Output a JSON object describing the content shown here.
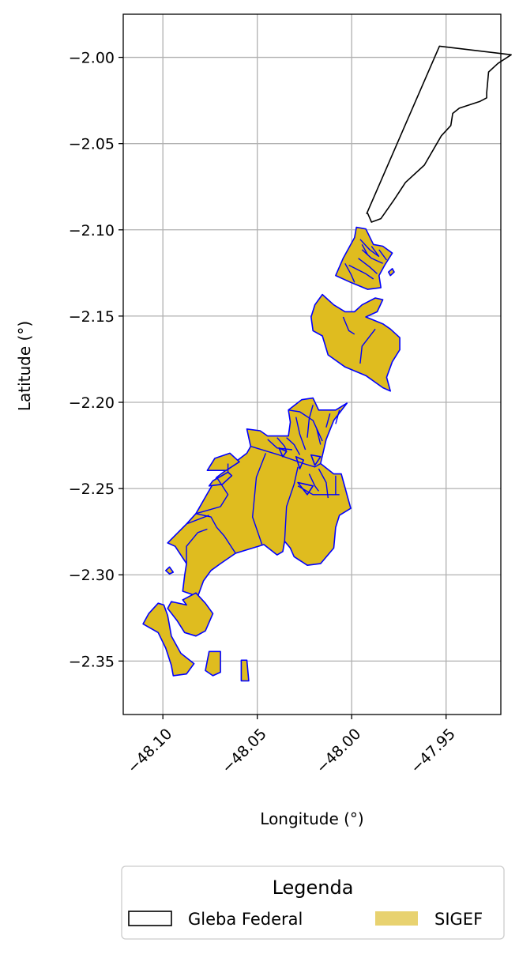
{
  "chart_data": {
    "type": "map",
    "xlabel": "Longitude (°)",
    "ylabel": "Latitude (°)",
    "xlim": [
      -48.121,
      -47.921
    ],
    "ylim": [
      -2.381,
      -1.975
    ],
    "x_ticks": [
      {
        "value": -48.1,
        "label": "−48.10"
      },
      {
        "value": -48.05,
        "label": "−48.05"
      },
      {
        "value": -48.0,
        "label": "−48.00"
      },
      {
        "value": -47.95,
        "label": "−47.95"
      }
    ],
    "y_ticks": [
      {
        "value": -2.0,
        "label": "−2.00"
      },
      {
        "value": -2.05,
        "label": "−2.05"
      },
      {
        "value": -2.1,
        "label": "−2.10"
      },
      {
        "value": -2.15,
        "label": "−2.15"
      },
      {
        "value": -2.2,
        "label": "−2.20"
      },
      {
        "value": -2.25,
        "label": "−2.25"
      },
      {
        "value": -2.3,
        "label": "−2.30"
      },
      {
        "value": -2.35,
        "label": "−2.35"
      }
    ],
    "grid": true,
    "legend": {
      "title": "Legenda",
      "placement": "bottom",
      "entries": [
        {
          "name": "Gleba Federal",
          "fill": "none",
          "edge": "#000000"
        },
        {
          "name": "SIGEF",
          "fill": "#e8d270",
          "edge": "none"
        }
      ]
    },
    "colors": {
      "sigef_fill": "#dfbc1f",
      "sigef_edge": "#0000ff",
      "gleba_edge": "#000000"
    },
    "gleba_federal": [
      [
        [
          -47.992,
          -2.0905
        ],
        [
          -47.9535,
          -1.9935
        ],
        [
          -47.9155,
          -1.9985
        ],
        [
          -47.9225,
          -2.0035
        ],
        [
          -47.9275,
          -2.0085
        ],
        [
          -47.9285,
          -2.0205
        ],
        [
          -47.9285,
          -2.0235
        ],
        [
          -47.932,
          -2.0255
        ],
        [
          -47.943,
          -2.0295
        ],
        [
          -47.9465,
          -2.0325
        ],
        [
          -47.9475,
          -2.0395
        ],
        [
          -47.9525,
          -2.0455
        ],
        [
          -47.9615,
          -2.0625
        ],
        [
          -47.9715,
          -2.0725
        ],
        [
          -47.9775,
          -2.0825
        ],
        [
          -47.9845,
          -2.0935
        ],
        [
          -47.9895,
          -2.0955
        ],
        [
          -47.9915,
          -2.0905
        ]
      ]
    ],
    "sigef": [
      [
        [
          -47.9975,
          -2.0985
        ],
        [
          -47.9925,
          -2.0995
        ],
        [
          -47.9885,
          -2.1085
        ],
        [
          -47.9835,
          -2.1095
        ],
        [
          -47.9785,
          -2.1135
        ],
        [
          -47.9825,
          -2.1205
        ],
        [
          -47.9855,
          -2.1265
        ],
        [
          -47.9845,
          -2.1335
        ],
        [
          -47.9915,
          -2.1345
        ],
        [
          -48.0005,
          -2.1305
        ],
        [
          -48.0085,
          -2.1265
        ],
        [
          -48.0045,
          -2.1165
        ],
        [
          -47.9985,
          -2.1045
        ]
      ],
      [
        [
          -47.9785,
          -2.1225
        ],
        [
          -47.9805,
          -2.1245
        ],
        [
          -47.9795,
          -2.1265
        ],
        [
          -47.9775,
          -2.1245
        ]
      ],
      [
        [
          -47.9925,
          -2.1505
        ],
        [
          -47.9865,
          -2.1475
        ],
        [
          -47.9835,
          -2.1405
        ],
        [
          -47.9875,
          -2.1395
        ],
        [
          -47.9945,
          -2.1435
        ],
        [
          -47.9985,
          -2.1475
        ],
        [
          -48.0035,
          -2.1475
        ],
        [
          -48.0095,
          -2.1435
        ],
        [
          -48.0135,
          -2.1395
        ],
        [
          -48.0155,
          -2.1375
        ],
        [
          -48.0195,
          -2.1435
        ],
        [
          -48.0215,
          -2.1505
        ],
        [
          -48.0205,
          -2.1585
        ],
        [
          -48.0155,
          -2.1615
        ],
        [
          -48.0125,
          -2.1725
        ],
        [
          -48.0035,
          -2.1795
        ],
        [
          -47.9925,
          -2.1845
        ],
        [
          -47.9835,
          -2.1915
        ],
        [
          -47.9795,
          -2.1935
        ],
        [
          -47.9815,
          -2.1855
        ],
        [
          -47.9785,
          -2.1765
        ],
        [
          -47.9745,
          -2.1695
        ],
        [
          -47.9745,
          -2.1625
        ],
        [
          -47.9795,
          -2.1575
        ],
        [
          -47.9835,
          -2.1545
        ]
      ],
      [
        [
          -48.0445,
          -2.2195
        ],
        [
          -48.0335,
          -2.2195
        ],
        [
          -48.0325,
          -2.2115
        ],
        [
          -48.0335,
          -2.2045
        ],
        [
          -48.0265,
          -2.1985
        ],
        [
          -48.0205,
          -2.1975
        ],
        [
          -48.0175,
          -2.2045
        ],
        [
          -48.0085,
          -2.2045
        ],
        [
          -48.0025,
          -2.2005
        ],
        [
          -48.0095,
          -2.2105
        ],
        [
          -48.0135,
          -2.2215
        ],
        [
          -48.0165,
          -2.2355
        ],
        [
          -48.0095,
          -2.2415
        ],
        [
          -48.0055,
          -2.2415
        ],
        [
          -48.0035,
          -2.2495
        ],
        [
          -48.0005,
          -2.2615
        ],
        [
          -48.0065,
          -2.2655
        ],
        [
          -48.0085,
          -2.2725
        ],
        [
          -48.0095,
          -2.2845
        ],
        [
          -48.0165,
          -2.2935
        ],
        [
          -48.0235,
          -2.2945
        ],
        [
          -48.0305,
          -2.2895
        ],
        [
          -48.0325,
          -2.2845
        ],
        [
          -48.0355,
          -2.2805
        ],
        [
          -48.0365,
          -2.2865
        ],
        [
          -48.0395,
          -2.2885
        ],
        [
          -48.0465,
          -2.2825
        ],
        [
          -48.0615,
          -2.2875
        ],
        [
          -48.0695,
          -2.2935
        ],
        [
          -48.0745,
          -2.2975
        ],
        [
          -48.0785,
          -2.3035
        ],
        [
          -48.0815,
          -2.3125
        ],
        [
          -48.0895,
          -2.3095
        ],
        [
          -48.0885,
          -2.3005
        ],
        [
          -48.0875,
          -2.2935
        ],
        [
          -48.0935,
          -2.2835
        ],
        [
          -48.0975,
          -2.2815
        ],
        [
          -48.0875,
          -2.2705
        ],
        [
          -48.0825,
          -2.2645
        ],
        [
          -48.0715,
          -2.2435
        ],
        [
          -48.0655,
          -2.2385
        ],
        [
          -48.0615,
          -2.2345
        ],
        [
          -48.0555,
          -2.2295
        ],
        [
          -48.0535,
          -2.2255
        ],
        [
          -48.0555,
          -2.2155
        ],
        [
          -48.0485,
          -2.2165
        ]
      ],
      [
        [
          -48.0665,
          -2.2395
        ],
        [
          -48.0765,
          -2.2395
        ],
        [
          -48.0725,
          -2.2325
        ],
        [
          -48.0645,
          -2.2295
        ],
        [
          -48.0595,
          -2.2345
        ]
      ],
      [
        [
          -48.0655,
          -2.2405
        ],
        [
          -48.0735,
          -2.2455
        ],
        [
          -48.0755,
          -2.2485
        ],
        [
          -48.0685,
          -2.2475
        ],
        [
          -48.0635,
          -2.2425
        ]
      ],
      [
        [
          -48.0985,
          -2.2975
        ],
        [
          -48.0965,
          -2.2955
        ],
        [
          -48.0945,
          -2.2985
        ],
        [
          -48.0965,
          -2.2995
        ]
      ],
      [
        [
          -48.0875,
          -2.3175
        ],
        [
          -48.0895,
          -2.3145
        ],
        [
          -48.0825,
          -2.3105
        ],
        [
          -48.0775,
          -2.3165
        ],
        [
          -48.0735,
          -2.3225
        ],
        [
          -48.0775,
          -2.3325
        ],
        [
          -48.0825,
          -2.3355
        ],
        [
          -48.0885,
          -2.3335
        ],
        [
          -48.0925,
          -2.3265
        ],
        [
          -48.0975,
          -2.3195
        ],
        [
          -48.0955,
          -2.3155
        ]
      ],
      [
        [
          -48.1025,
          -2.3165
        ],
        [
          -48.1075,
          -2.3225
        ],
        [
          -48.1105,
          -2.3285
        ],
        [
          -48.1025,
          -2.3335
        ],
        [
          -48.0985,
          -2.3425
        ],
        [
          -48.0955,
          -2.3525
        ],
        [
          -48.0945,
          -2.3585
        ],
        [
          -48.0875,
          -2.3575
        ],
        [
          -48.0835,
          -2.3515
        ],
        [
          -48.0905,
          -2.3455
        ],
        [
          -48.0955,
          -2.3355
        ],
        [
          -48.0975,
          -2.3235
        ],
        [
          -48.0995,
          -2.3175
        ]
      ],
      [
        [
          -48.0755,
          -2.3445
        ],
        [
          -48.0695,
          -2.3445
        ],
        [
          -48.0695,
          -2.3565
        ],
        [
          -48.0735,
          -2.3585
        ],
        [
          -48.0775,
          -2.3555
        ]
      ],
      [
        [
          -48.0585,
          -2.3495
        ],
        [
          -48.0555,
          -2.3495
        ],
        [
          -48.0545,
          -2.3615
        ],
        [
          -48.0585,
          -2.3615
        ]
      ],
      [
        [
          -48.0215,
          -2.2305
        ],
        [
          -48.0165,
          -2.2315
        ],
        [
          -48.0195,
          -2.2365
        ]
      ],
      [
        [
          -48.0295,
          -2.2315
        ],
        [
          -48.0255,
          -2.2335
        ],
        [
          -48.0275,
          -2.2385
        ]
      ],
      [
        [
          -48.0385,
          -2.2265
        ],
        [
          -48.0345,
          -2.2285
        ],
        [
          -48.0365,
          -2.2315
        ]
      ],
      [
        [
          -48.0285,
          -2.2465
        ],
        [
          -48.0205,
          -2.2485
        ],
        [
          -48.0235,
          -2.2535
        ]
      ]
    ],
    "internal_boundaries": [
      [
        [
          -47.9945,
          -2.1115
        ],
        [
          -47.9895,
          -2.1165
        ],
        [
          -47.9835,
          -2.1195
        ]
      ],
      [
        [
          -47.9965,
          -2.1165
        ],
        [
          -47.9905,
          -2.1215
        ],
        [
          -47.9865,
          -2.1255
        ]
      ],
      [
        [
          -48.0015,
          -2.1205
        ],
        [
          -47.9925,
          -2.1255
        ],
        [
          -47.9885,
          -2.1285
        ]
      ],
      [
        [
          -47.9955,
          -2.1055
        ],
        [
          -47.9905,
          -2.1115
        ],
        [
          -47.9855,
          -2.1155
        ]
      ],
      [
        [
          -48.0035,
          -2.1195
        ],
        [
          -48.0005,
          -2.1255
        ],
        [
          -47.9985,
          -2.1305
        ]
      ],
      [
        [
          -47.9945,
          -2.1085
        ],
        [
          -47.9915,
          -2.1145
        ]
      ],
      [
        [
          -47.9895,
          -2.1095
        ],
        [
          -47.9855,
          -2.1155
        ]
      ],
      [
        [
          -47.9855,
          -2.1115
        ],
        [
          -47.9815,
          -2.1175
        ]
      ],
      [
        [
          -48.0045,
          -2.1505
        ],
        [
          -48.0015,
          -2.1585
        ],
        [
          -47.9985,
          -2.1605
        ]
      ],
      [
        [
          -47.9875,
          -2.1575
        ],
        [
          -47.9945,
          -2.1675
        ],
        [
          -47.9955,
          -2.1775
        ]
      ],
      [
        [
          -48.0335,
          -2.2045
        ],
        [
          -48.0275,
          -2.2055
        ],
        [
          -48.0205,
          -2.2105
        ],
        [
          -48.0155,
          -2.2225
        ]
      ],
      [
        [
          -48.0295,
          -2.2085
        ],
        [
          -48.0275,
          -2.2185
        ],
        [
          -48.0245,
          -2.2275
        ]
      ],
      [
        [
          -48.0345,
          -2.2205
        ],
        [
          -48.0305,
          -2.2245
        ],
        [
          -48.0275,
          -2.2305
        ]
      ],
      [
        [
          -48.0395,
          -2.2205
        ],
        [
          -48.0355,
          -2.2255
        ],
        [
          -48.0345,
          -2.2285
        ]
      ],
      [
        [
          -48.0185,
          -2.2155
        ],
        [
          -48.0165,
          -2.2245
        ]
      ],
      [
        [
          -48.0115,
          -2.2065
        ],
        [
          -48.0135,
          -2.2145
        ]
      ],
      [
        [
          -48.0065,
          -2.2045
        ],
        [
          -48.0085,
          -2.2125
        ]
      ],
      [
        [
          -48.0205,
          -2.2015
        ],
        [
          -48.0225,
          -2.2095
        ],
        [
          -48.0235,
          -2.2205
        ]
      ],
      [
        [
          -48.0535,
          -2.2255
        ],
        [
          -48.0385,
          -2.2305
        ],
        [
          -48.0255,
          -2.2355
        ],
        [
          -48.0195,
          -2.2375
        ],
        [
          -48.0165,
          -2.2355
        ]
      ],
      [
        [
          -48.0445,
          -2.2215
        ],
        [
          -48.0395,
          -2.2265
        ],
        [
          -48.0315,
          -2.2275
        ]
      ],
      [
        [
          -48.0455,
          -2.2295
        ],
        [
          -48.0505,
          -2.2435
        ],
        [
          -48.0525,
          -2.2665
        ],
        [
          -48.0475,
          -2.2825
        ]
      ],
      [
        [
          -48.0285,
          -2.2375
        ],
        [
          -48.0305,
          -2.2475
        ],
        [
          -48.0345,
          -2.2605
        ],
        [
          -48.0355,
          -2.2805
        ]
      ],
      [
        [
          -48.0175,
          -2.2385
        ],
        [
          -48.0135,
          -2.2465
        ],
        [
          -48.0125,
          -2.2555
        ]
      ],
      [
        [
          -48.0225,
          -2.2415
        ],
        [
          -48.0195,
          -2.2485
        ],
        [
          -48.0175,
          -2.2515
        ]
      ],
      [
        [
          -48.0285,
          -2.2485
        ],
        [
          -48.0205,
          -2.2535
        ],
        [
          -48.0065,
          -2.2535
        ]
      ],
      [
        [
          -48.0085,
          -2.2425
        ],
        [
          -48.0085,
          -2.2535
        ]
      ],
      [
        [
          -48.0755,
          -2.2655
        ],
        [
          -48.0875,
          -2.2705
        ]
      ],
      [
        [
          -48.0825,
          -2.2645
        ],
        [
          -48.0745,
          -2.2665
        ],
        [
          -48.0715,
          -2.2725
        ],
        [
          -48.0675,
          -2.2775
        ],
        [
          -48.0615,
          -2.2875
        ]
      ],
      [
        [
          -48.0765,
          -2.2735
        ],
        [
          -48.0815,
          -2.2755
        ],
        [
          -48.0875,
          -2.2835
        ],
        [
          -48.0875,
          -2.2935
        ]
      ],
      [
        [
          -48.0715,
          -2.2435
        ],
        [
          -48.0655,
          -2.2535
        ],
        [
          -48.0695,
          -2.2605
        ],
        [
          -48.0825,
          -2.2645
        ]
      ],
      [
        [
          -48.0655,
          -2.2355
        ],
        [
          -48.0655,
          -2.2405
        ]
      ]
    ]
  }
}
